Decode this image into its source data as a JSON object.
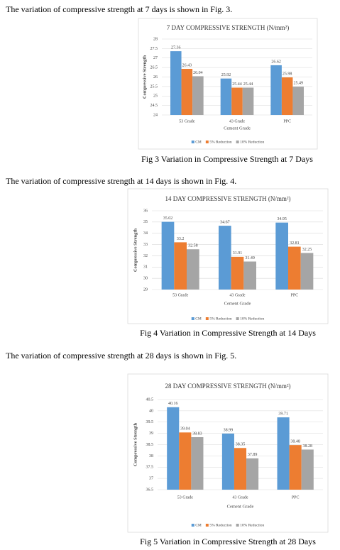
{
  "paragraphs": [
    "The variation of compressive strength at 7 days is shown in Fig. 3.",
    "The variation of compressive strength at 14 days is shown in Fig. 4.",
    "The variation of compressive strength at 28 days is shown in Fig. 5."
  ],
  "captions": [
    "Fig 3 Variation in Compressive Strength at 7 Days",
    "Fig 4 Variation in Compressive Strength at 14 Days",
    "Fig 5 Variation in Compressive Strength at 28 Days"
  ],
  "chart_data": [
    {
      "type": "bar",
      "title": "7 DAY COMPRESSIVE STRENGTH (N/mm²)",
      "x_label": "Cement Grade",
      "y_label": "Compressive Strength",
      "categories": [
        "53 Grade",
        "43 Grade",
        "PPC"
      ],
      "series": [
        {
          "name": "CM",
          "color": "#5b9bd5",
          "values": [
            27.36,
            25.92,
            26.62
          ]
        },
        {
          "name": "5% Reduction",
          "color": "#ed7d31",
          "values": [
            26.43,
            25.44,
            25.98
          ]
        },
        {
          "name": "10% Reduction",
          "color": "#a5a5a5",
          "values": [
            26.04,
            25.44,
            25.49
          ]
        }
      ],
      "ylim": [
        24,
        28
      ],
      "yticks": [
        24,
        24.5,
        25,
        25.5,
        26,
        26.5,
        27,
        27.5,
        28
      ],
      "grid": true,
      "legend": "bottom"
    },
    {
      "type": "bar",
      "title": "14 DAY COMPRESSIVE STRENGTH (N/mm²)",
      "x_label": "Cement Grade",
      "y_label": "Compressive Strength",
      "categories": [
        "53 Grade",
        "43 Grade",
        "PPC"
      ],
      "series": [
        {
          "name": "CM",
          "color": "#5b9bd5",
          "values": [
            35.02,
            34.67,
            34.95
          ]
        },
        {
          "name": "5% Reduction",
          "color": "#ed7d31",
          "values": [
            33.2,
            31.91,
            32.81
          ]
        },
        {
          "name": "10% Reduction",
          "color": "#a5a5a5",
          "values": [
            32.58,
            31.49,
            32.25
          ]
        }
      ],
      "ylim": [
        29,
        36
      ],
      "yticks": [
        29,
        30,
        31,
        32,
        33,
        34,
        35,
        36
      ],
      "grid": true,
      "legend": "bottom"
    },
    {
      "type": "bar",
      "title": "28 DAY COMPRESSIVE STRENGTH (N/mm²)",
      "x_label": "Cement Grade",
      "y_label": "Compressive Strength",
      "categories": [
        "53 Grade",
        "43 Grade",
        "PPC"
      ],
      "series": [
        {
          "name": "CM",
          "color": "#5b9bd5",
          "values": [
            40.16,
            38.99,
            39.71
          ]
        },
        {
          "name": "5% Reduction",
          "color": "#ed7d31",
          "values": [
            39.04,
            38.35,
            38.48
          ]
        },
        {
          "name": "10% Reduction",
          "color": "#a5a5a5",
          "values": [
            38.83,
            37.89,
            38.28
          ]
        }
      ],
      "ylim": [
        36.5,
        40.5
      ],
      "yticks": [
        36.5,
        37,
        37.5,
        38,
        38.5,
        39,
        39.5,
        40,
        40.5
      ],
      "grid": true,
      "legend": "bottom"
    }
  ]
}
